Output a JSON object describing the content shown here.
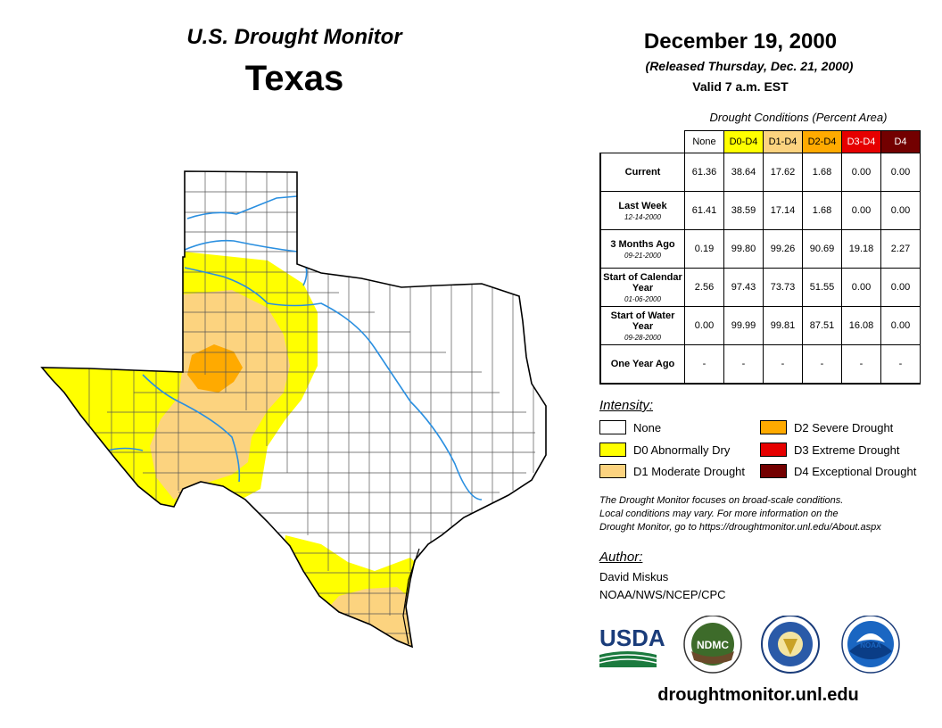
{
  "header": {
    "title": "U.S. Drought Monitor",
    "state": "Texas",
    "date": "December 19, 2000",
    "released": "(Released Thursday, Dec. 21, 2000)",
    "valid": "Valid 7 a.m. EST"
  },
  "conditions": {
    "caption": "Drought Conditions (Percent Area)",
    "columns": [
      {
        "label": "None",
        "color": "#ffffff",
        "text_color": "#000000"
      },
      {
        "label": "D0-D4",
        "color": "#ffff00",
        "text_color": "#000000"
      },
      {
        "label": "D1-D4",
        "color": "#fcd37f",
        "text_color": "#000000"
      },
      {
        "label": "D2-D4",
        "color": "#ffaa00",
        "text_color": "#000000"
      },
      {
        "label": "D3-D4",
        "color": "#e60000",
        "text_color": "#ffffff"
      },
      {
        "label": "D4",
        "color": "#730000",
        "text_color": "#ffffff"
      }
    ],
    "rows": [
      {
        "label": "Current",
        "sub": "",
        "values": [
          "61.36",
          "38.64",
          "17.62",
          "1.68",
          "0.00",
          "0.00"
        ]
      },
      {
        "label": "Last Week",
        "sub": "12-14-2000",
        "values": [
          "61.41",
          "38.59",
          "17.14",
          "1.68",
          "0.00",
          "0.00"
        ]
      },
      {
        "label": "3 Months Ago",
        "sub": "09-21-2000",
        "values": [
          "0.19",
          "99.80",
          "99.26",
          "90.69",
          "19.18",
          "2.27"
        ]
      },
      {
        "label": "Start of Calendar Year",
        "sub": "01-06-2000",
        "values": [
          "2.56",
          "97.43",
          "73.73",
          "51.55",
          "0.00",
          "0.00"
        ]
      },
      {
        "label": "Start of Water Year",
        "sub": "09-28-2000",
        "values": [
          "0.00",
          "99.99",
          "99.81",
          "87.51",
          "16.08",
          "0.00"
        ]
      },
      {
        "label": "One Year Ago",
        "sub": "",
        "values": [
          "-",
          "-",
          "-",
          "-",
          "-",
          "-"
        ]
      }
    ]
  },
  "legend": {
    "heading": "Intensity:",
    "items": [
      {
        "label": "None",
        "color": "#ffffff"
      },
      {
        "label": "D0 Abnormally Dry",
        "color": "#ffff00"
      },
      {
        "label": "D1 Moderate Drought",
        "color": "#fcd37f"
      },
      {
        "label": "D2 Severe Drought",
        "color": "#ffaa00"
      },
      {
        "label": "D3 Extreme Drought",
        "color": "#e60000"
      },
      {
        "label": "D4 Exceptional Drought",
        "color": "#730000"
      }
    ]
  },
  "note": {
    "line1": "The Drought Monitor focuses on broad-scale conditions.",
    "line2": "Local conditions may vary. For more information on the",
    "line3": "Drought Monitor, go to https://droughtmonitor.unl.edu/About.aspx"
  },
  "author": {
    "heading": "Author:",
    "name": "David Miskus",
    "org": "NOAA/NWS/NCEP/CPC"
  },
  "logos": {
    "usda": "USDA",
    "ndmc": "NDMC",
    "noaa": "NOAA"
  },
  "footer": {
    "url": "droughtmonitor.unl.edu"
  },
  "map_colors": {
    "d0": "#ffff00",
    "d1": "#fcd37f",
    "d2": "#ffaa00",
    "river": "#2a8fe0"
  }
}
